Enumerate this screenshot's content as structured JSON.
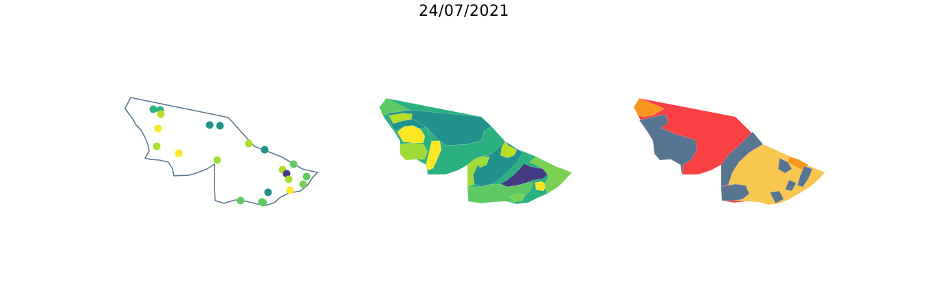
{
  "title": "24/07/2021",
  "panels": [
    {
      "name": "points-map",
      "kind": "point-markers",
      "outline_color": "#5b7590",
      "points": [
        {
          "color": "#2bb07f"
        },
        {
          "color": "#2bb07f"
        },
        {
          "color": "#bade28"
        },
        {
          "color": "#fde725"
        },
        {
          "color": "#21918c"
        },
        {
          "color": "#21918c"
        },
        {
          "color": "#addc30"
        },
        {
          "color": "#addc30"
        },
        {
          "color": "#fde725"
        },
        {
          "color": "#a2da37"
        },
        {
          "color": "#21918c"
        },
        {
          "color": "#5ec962"
        },
        {
          "color": "#addc30"
        },
        {
          "color": "#443983"
        },
        {
          "color": "#addc30"
        },
        {
          "color": "#5ec962"
        },
        {
          "color": "#7ad151"
        },
        {
          "color": "#fde725"
        },
        {
          "color": "#21918c"
        },
        {
          "color": "#5ec962"
        },
        {
          "color": "#5ec962"
        },
        {
          "color": "#5ec962"
        }
      ]
    },
    {
      "name": "viridis-choropleth",
      "kind": "choropleth",
      "palette": [
        "#443983",
        "#21918c",
        "#2bb07f",
        "#5ec962",
        "#7ad151",
        "#a2da37",
        "#bade28",
        "#fde725"
      ]
    },
    {
      "name": "category-choropleth",
      "kind": "choropleth",
      "palette": [
        "#f94144",
        "#f8961e",
        "#f9c74f",
        "#577590"
      ]
    }
  ]
}
